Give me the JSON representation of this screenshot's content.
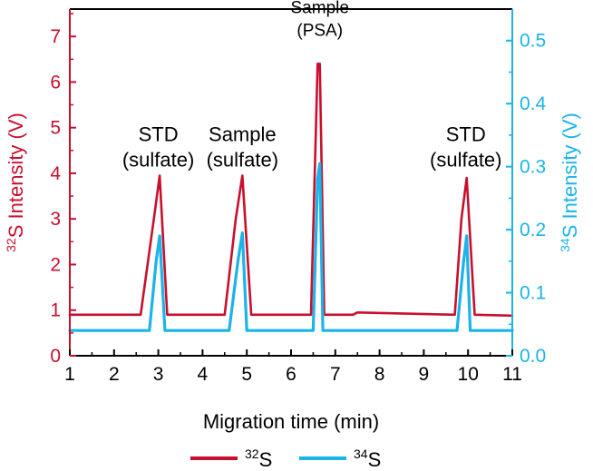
{
  "chart_data": {
    "type": "line",
    "title": "",
    "xlabel": "Migration time (min)",
    "ylabel_left": {
      "sup": "32",
      "text": "S Intensity (V)"
    },
    "ylabel_right": {
      "sup": "34",
      "text": "S Intensity (V)"
    },
    "xlim": [
      1,
      11
    ],
    "ylim_left": [
      0,
      7.6
    ],
    "ylim_right": [
      0,
      0.55
    ],
    "x_ticks": [
      "1",
      "2",
      "3",
      "4",
      "5",
      "6",
      "7",
      "8",
      "9",
      "10",
      "11"
    ],
    "y_left_ticks": [
      "0",
      "1",
      "2",
      "3",
      "4",
      "5",
      "6",
      "7"
    ],
    "y_right_ticks": [
      "0.0",
      "0.1",
      "0.2",
      "0.3",
      "0.4",
      "0.5"
    ],
    "left_axis_color": "#c8102e",
    "right_axis_color": "#1ab4e8",
    "legend": [
      {
        "sup": "32",
        "label": "S",
        "color": "#c8102e"
      },
      {
        "sup": "34",
        "label": "S",
        "color": "#1ab4e8"
      }
    ],
    "legend_position": "bottom-center",
    "annotations": [
      {
        "lines": [
          "STD",
          "(sulfate)"
        ],
        "x": 3.0,
        "y_left": 4.55
      },
      {
        "lines": [
          "Sample",
          "(sulfate)"
        ],
        "x": 4.9,
        "y_left": 4.55
      },
      {
        "lines": [
          "Sample",
          "(PSA)"
        ],
        "x": 6.65,
        "y_left": 7.35
      },
      {
        "lines": [
          "STD",
          "(sulfate)"
        ],
        "x": 9.95,
        "y_left": 4.55
      }
    ],
    "series": [
      {
        "name": "32S",
        "axis": "left",
        "color": "#c8102e",
        "baseline": 0.9,
        "x": [
          1,
          2.6,
          2.9,
          3.03,
          3.2,
          4.5,
          4.75,
          4.9,
          5.1,
          6.45,
          6.6,
          6.65,
          6.75,
          7.4,
          7.5,
          9.7,
          9.85,
          9.97,
          10.15,
          11
        ],
        "y": [
          0.9,
          0.9,
          3.0,
          3.95,
          0.9,
          0.9,
          3.0,
          3.95,
          0.9,
          0.9,
          6.4,
          6.4,
          0.9,
          0.9,
          0.95,
          0.9,
          3.0,
          3.9,
          0.9,
          0.88
        ]
      },
      {
        "name": "34S",
        "axis": "right",
        "color": "#1ab4e8",
        "baseline": 0.04,
        "x": [
          1,
          2.8,
          2.95,
          3.03,
          3.15,
          4.6,
          4.8,
          4.9,
          5.0,
          6.5,
          6.6,
          6.65,
          6.72,
          9.75,
          9.9,
          9.97,
          10.05,
          11
        ],
        "y": [
          0.04,
          0.04,
          0.15,
          0.19,
          0.04,
          0.04,
          0.15,
          0.195,
          0.04,
          0.04,
          0.28,
          0.305,
          0.04,
          0.04,
          0.15,
          0.19,
          0.04,
          0.04
        ]
      }
    ]
  }
}
